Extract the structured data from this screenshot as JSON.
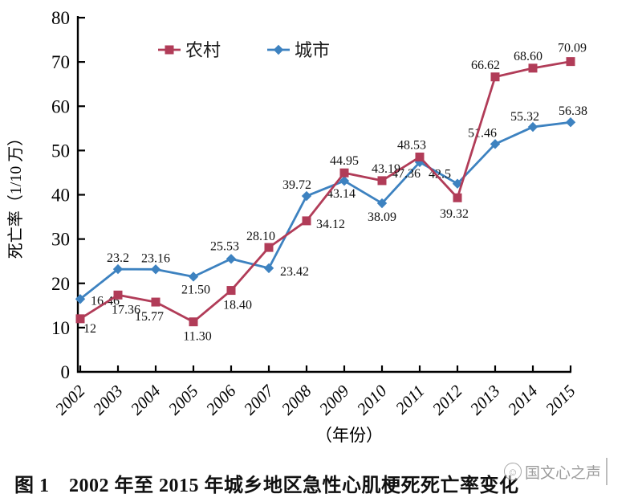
{
  "chart_data": {
    "type": "line",
    "title": "",
    "xlabel": "（年份）",
    "ylabel": "死亡率（1/10 万）",
    "ylim": [
      0,
      80
    ],
    "yticks": [
      "0",
      "10",
      "20",
      "30",
      "40",
      "50",
      "60",
      "70",
      "80"
    ],
    "categories": [
      "2002",
      "2003",
      "2004",
      "2005",
      "2006",
      "2007",
      "2008",
      "2009",
      "2010",
      "2011",
      "2012",
      "2013",
      "2014",
      "2015"
    ],
    "grid": false,
    "legend_position": "top-center",
    "series": [
      {
        "name": "农村",
        "color": "#b13c58",
        "marker": "square",
        "values": [
          12,
          17.36,
          15.77,
          11.3,
          18.4,
          28.1,
          34.12,
          44.95,
          43.19,
          48.53,
          39.32,
          66.62,
          68.6,
          70.09
        ],
        "labels": [
          "12",
          "17.36",
          "15.77",
          "11.30",
          "18.40",
          "28.10",
          "34.12",
          "44.95",
          "43.19",
          "48.53",
          "39.32",
          "66.62",
          "68.60",
          "70.09"
        ]
      },
      {
        "name": "城市",
        "color": "#3d82c0",
        "marker": "diamond",
        "values": [
          16.46,
          23.2,
          23.16,
          21.5,
          25.53,
          23.42,
          39.72,
          43.14,
          38.09,
          47.36,
          42.5,
          51.46,
          55.32,
          56.38
        ],
        "labels": [
          "16.46",
          "23.2",
          "23.16",
          "21.50",
          "25.53",
          "23.42",
          "39.72",
          "43.14",
          "38.09",
          "47.36",
          "42.5",
          "51.46",
          "55.32",
          "56.38"
        ]
      }
    ]
  },
  "caption": "图 1　2002 年至 2015 年城乡地区急性心肌梗死死亡率变化",
  "watermark": {
    "icon": "face-logo-icon",
    "text": "国文心之声"
  },
  "colors": {
    "rural": "#b13c58",
    "urban": "#3d82c0",
    "axis": "#000000",
    "watermark": "#8f8f8f"
  }
}
